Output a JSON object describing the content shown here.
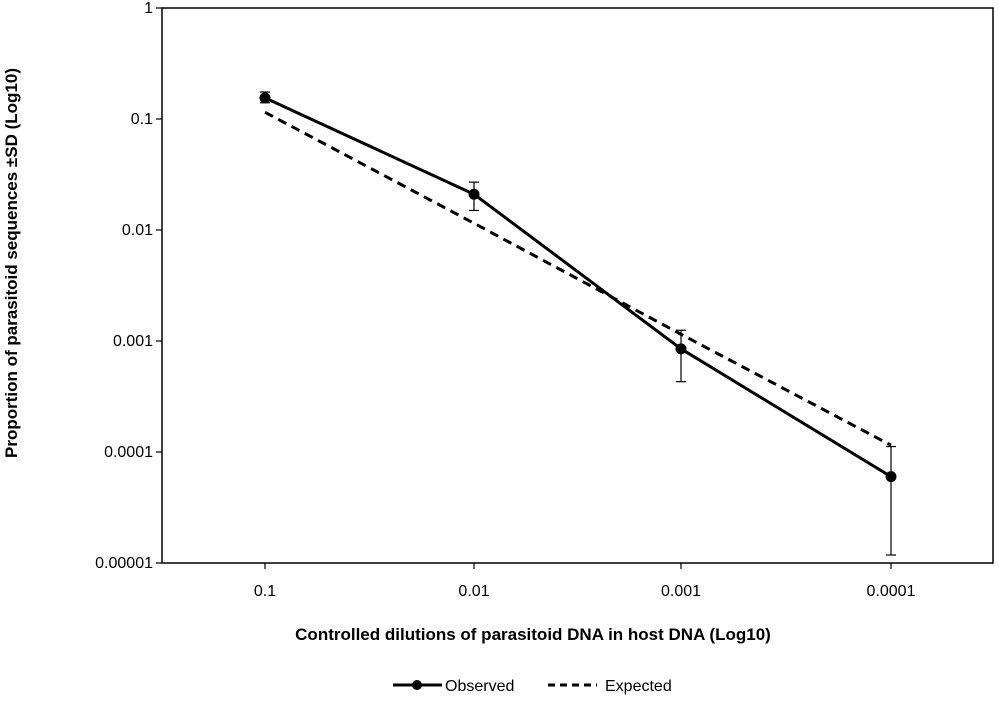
{
  "chart_data": {
    "type": "line",
    "title": "",
    "xlabel": "Controlled dilutions of parasitoid  DNA in host DNA (Log10)",
    "ylabel": "Proportion of parasitoid sequences ±SD (Log10)",
    "x_categories": [
      "0.1",
      "0.01",
      "0.001",
      "0.0001"
    ],
    "y_scale": "log10",
    "ylim": [
      1e-05,
      1
    ],
    "y_ticks": [
      1,
      0.1,
      0.01,
      0.001,
      0.0001,
      1e-05
    ],
    "y_tick_labels": [
      "1",
      "0.1",
      "0.01",
      "0.001",
      "0.0001",
      "0.00001"
    ],
    "grid": false,
    "legend_position": "bottom",
    "series": [
      {
        "name": "Observed",
        "style": "solid",
        "marker": "circle",
        "color": "#000000",
        "values": [
          0.155,
          0.021,
          0.00085,
          6e-05
        ],
        "err_low": [
          0.14,
          0.015,
          0.00043,
          1.18e-05
        ],
        "err_high": [
          0.175,
          0.027,
          0.00125,
          0.000112
        ]
      },
      {
        "name": "Expected",
        "style": "dashed",
        "marker": "none",
        "color": "#000000",
        "values": [
          0.115,
          0.0115,
          0.00115,
          0.000115
        ]
      }
    ]
  }
}
